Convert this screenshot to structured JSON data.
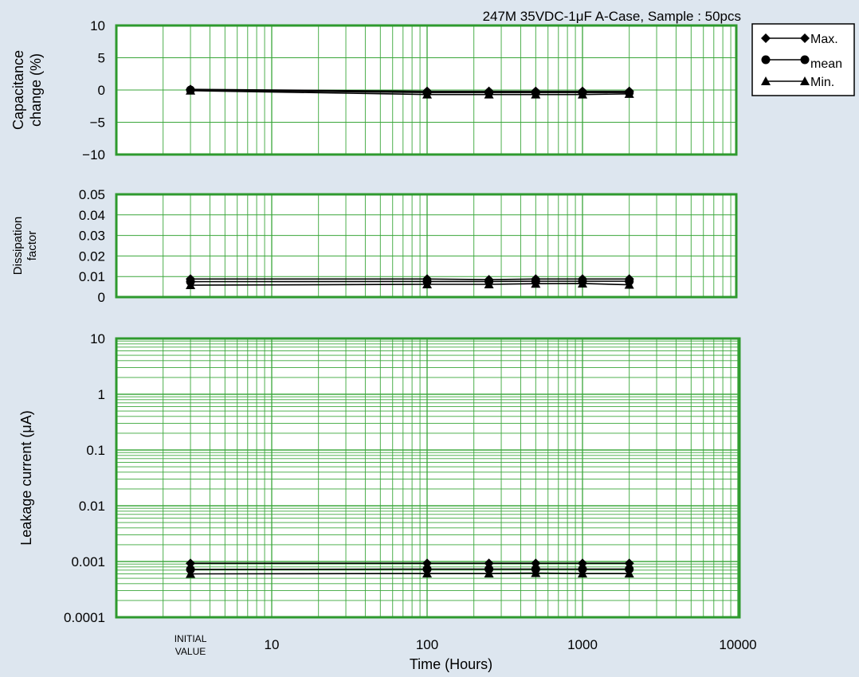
{
  "title": "247M 35VDC-1μF A-Case, Sample : 50pcs",
  "colors": {
    "background": "#dde6ef",
    "plot_background": "#ffffff",
    "grid": "#3aa63a",
    "frame": "#2e9a2e",
    "series": "#000000"
  },
  "chart_data": [
    {
      "type": "line",
      "ylabel": [
        "Capacitance",
        "change  (%)"
      ],
      "ylim": [
        -10,
        10
      ],
      "yticks": [
        10,
        5,
        0,
        -5,
        -10
      ],
      "ytick_labels": [
        "10",
        "5",
        "0",
        "−5",
        "−10"
      ],
      "x_scale": "log",
      "x": [
        3,
        100,
        250,
        500,
        1000,
        2000
      ],
      "grid": true,
      "series": [
        {
          "name": "Max.",
          "marker": "diamond",
          "values": [
            0.1,
            -0.2,
            -0.2,
            -0.2,
            -0.2,
            -0.2
          ]
        },
        {
          "name": "mean",
          "marker": "circle",
          "values": [
            0.0,
            -0.4,
            -0.4,
            -0.4,
            -0.4,
            -0.4
          ]
        },
        {
          "name": "Min.",
          "marker": "triangle",
          "values": [
            -0.1,
            -0.7,
            -0.7,
            -0.7,
            -0.7,
            -0.6
          ]
        }
      ]
    },
    {
      "type": "line",
      "ylabel": [
        "Dissipation",
        "factor"
      ],
      "ylim": [
        0,
        0.05
      ],
      "yticks": [
        0.05,
        0.04,
        0.03,
        0.02,
        0.01,
        0
      ],
      "ytick_labels": [
        "0.05",
        "0.04",
        "0.03",
        "0.02",
        "0.01",
        "0"
      ],
      "x_scale": "log",
      "x": [
        3,
        100,
        250,
        500,
        1000,
        2000
      ],
      "grid": true,
      "series": [
        {
          "name": "Max.",
          "marker": "diamond",
          "values": [
            0.0088,
            0.0088,
            0.0085,
            0.0088,
            0.0088,
            0.0088
          ]
        },
        {
          "name": "mean",
          "marker": "circle",
          "values": [
            0.0075,
            0.0076,
            0.0076,
            0.0077,
            0.0077,
            0.0077
          ]
        },
        {
          "name": "Min.",
          "marker": "triangle",
          "values": [
            0.0058,
            0.0062,
            0.0062,
            0.0065,
            0.0066,
            0.006
          ]
        }
      ]
    },
    {
      "type": "line",
      "ylabel": [
        "Leakage  current (μA)"
      ],
      "y_scale": "log",
      "ylim": [
        0.0001,
        10
      ],
      "yticks": [
        10,
        1,
        0.1,
        0.01,
        0.001,
        0.0001
      ],
      "ytick_labels": [
        "10",
        "1",
        "0.1",
        "0.01",
        "0.001",
        "0.0001"
      ],
      "x_scale": "log",
      "xlim": [
        1,
        10000
      ],
      "x": [
        3,
        100,
        250,
        500,
        1000,
        2000
      ],
      "xtick_labels": [
        {
          "value": 3,
          "lines": [
            "INITIAL",
            "VALUE"
          ]
        },
        {
          "value": 10,
          "lines": [
            "10"
          ]
        },
        {
          "value": 100,
          "lines": [
            "100"
          ]
        },
        {
          "value": 1000,
          "lines": [
            "1000"
          ]
        },
        {
          "value": 10000,
          "lines": [
            "10000"
          ]
        }
      ],
      "xlabel": "Time (Hours)",
      "grid": true,
      "series": [
        {
          "name": "Max.",
          "marker": "diamond",
          "values": [
            0.00093,
            0.00093,
            0.00093,
            0.00093,
            0.00093,
            0.00093
          ]
        },
        {
          "name": "mean",
          "marker": "circle",
          "values": [
            0.00072,
            0.00073,
            0.00073,
            0.00073,
            0.00073,
            0.00073
          ]
        },
        {
          "name": "Min.",
          "marker": "triangle",
          "values": [
            0.0006,
            0.00061,
            0.00061,
            0.00062,
            0.00061,
            0.00061
          ]
        }
      ]
    }
  ],
  "legend": {
    "placement": "top-right",
    "entries": [
      {
        "label": "Max.",
        "marker": "diamond"
      },
      {
        "label": "mean",
        "marker": "circle"
      },
      {
        "label": "Min.",
        "marker": "triangle"
      }
    ]
  }
}
